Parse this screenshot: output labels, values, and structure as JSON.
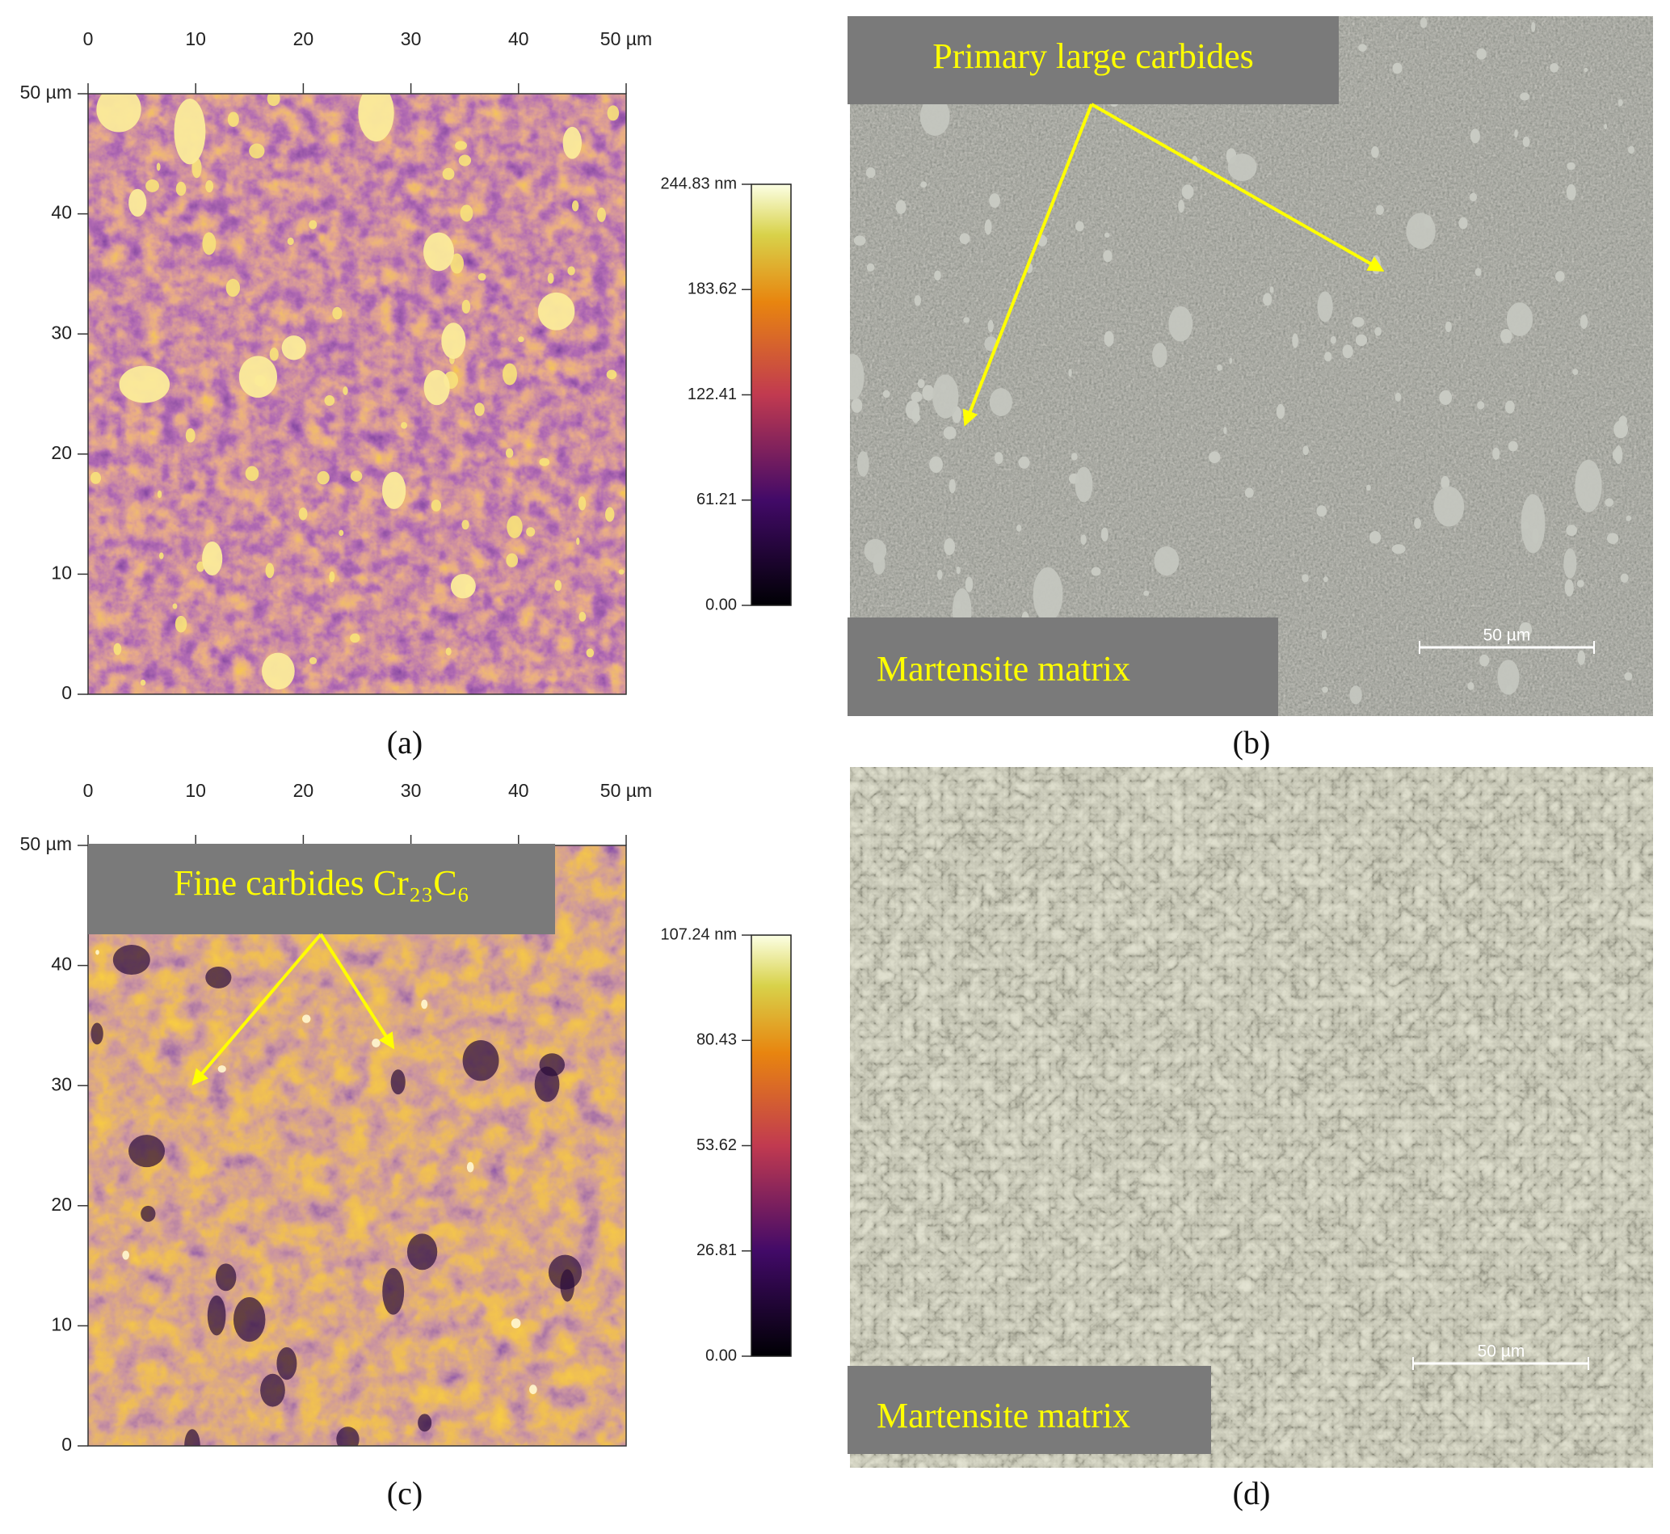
{
  "panels": [
    {
      "label": "(a)",
      "x_ticks": [
        "0",
        "10",
        "20",
        "30",
        "40",
        "50 µm"
      ],
      "y_ticks": [
        "50 µm",
        "40",
        "30",
        "20",
        "10",
        "0"
      ],
      "colorbar_ticks": [
        "244.83 nm",
        "183.62",
        "122.41",
        "61.21",
        "0.00"
      ]
    },
    {
      "label": "(b)",
      "annotations": [
        "Primary large carbides",
        "Martensite matrix"
      ],
      "scale_bar": "50 µm"
    },
    {
      "label": "(c)",
      "x_ticks": [
        "0",
        "10",
        "20",
        "30",
        "40",
        "50 µm"
      ],
      "y_ticks": [
        "50 µm",
        "40",
        "30",
        "20",
        "10",
        "0"
      ],
      "colorbar_ticks": [
        "107.24 nm",
        "80.43",
        "53.62",
        "26.81",
        "0.00"
      ],
      "annotations": [
        "Fine carbides Cr₂₃C₆"
      ]
    },
    {
      "label": "(d)",
      "annotations": [
        "Martensite matrix"
      ],
      "scale_bar": "50 µm"
    }
  ]
}
